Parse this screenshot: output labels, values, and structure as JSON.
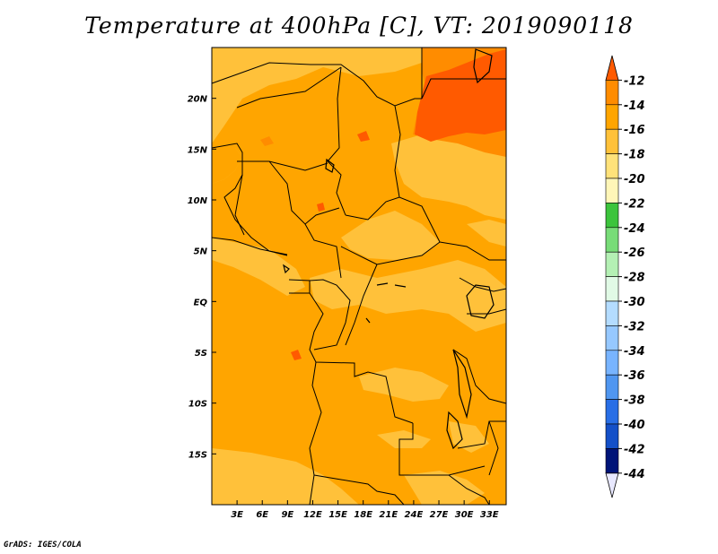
{
  "title": "Temperature at 400hPa [C], VT: 2019090118",
  "footer": "GrADS: IGES/COLA",
  "map": {
    "lon_range": [
      0,
      35
    ],
    "lat_range": [
      -20,
      25
    ],
    "lon_ticks": [
      "3E",
      "6E",
      "9E",
      "12E",
      "15E",
      "18E",
      "21E",
      "24E",
      "27E",
      "30E",
      "33E"
    ],
    "lon_tick_values": [
      3,
      6,
      9,
      12,
      15,
      18,
      21,
      24,
      27,
      30,
      33
    ],
    "lat_ticks": [
      "20N",
      "15N",
      "10N",
      "5N",
      "EQ",
      "5S",
      "10S",
      "15S"
    ],
    "lat_tick_values": [
      20,
      15,
      10,
      5,
      0,
      -5,
      -10,
      -15
    ]
  },
  "colorbar": {
    "labels": [
      "-12",
      "-14",
      "-16",
      "-18",
      "-20",
      "-22",
      "-24",
      "-26",
      "-28",
      "-30",
      "-32",
      "-34",
      "-36",
      "-38",
      "-40",
      "-42",
      "-44"
    ],
    "colors": [
      "#ff5a00",
      "#ff8c00",
      "#ffa500",
      "#ffc13a",
      "#ffe27a",
      "#fff6b8",
      "#3cc43c",
      "#78dc78",
      "#b4f0b4",
      "#e1fae6",
      "#b4dcff",
      "#96c8ff",
      "#78b4ff",
      "#5096f0",
      "#286ee6",
      "#1450c8",
      "#001478",
      "#e8e8ff"
    ]
  }
}
